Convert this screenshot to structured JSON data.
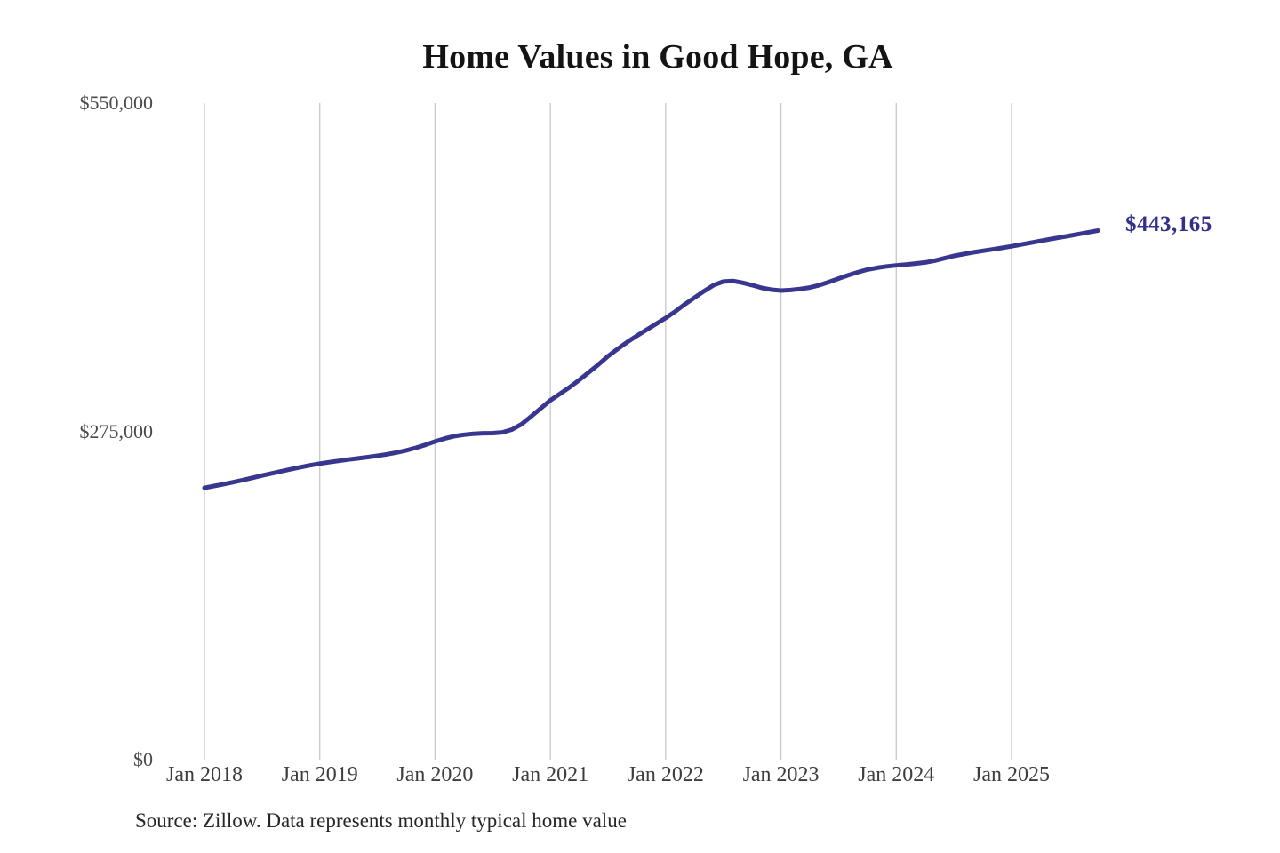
{
  "header": {
    "title": "Home Values in Good Hope, GA"
  },
  "footer": {
    "source_note": "Source: Zillow. Data represents monthly typical home value"
  },
  "colors": {
    "line": "#38368e",
    "end_label": "#32308a",
    "grid": "#c8c8c8",
    "title": "#141414",
    "y_axis_label": "#4a4a4a",
    "x_axis_label": "#3d3d3d",
    "source": "#262626",
    "background": "#ffffff"
  },
  "chart_data": {
    "type": "line",
    "title": "Home Values in Good Hope, GA",
    "unit": "USD",
    "frequency": "monthly",
    "x_start": "Jan 2018",
    "x_end": "Oct 2025",
    "grid": "vertical-only",
    "legend": "none",
    "ylim": [
      0,
      550000
    ],
    "x_tick_labels": [
      "Jan 2018",
      "Jan 2019",
      "Jan 2020",
      "Jan 2021",
      "Jan 2022",
      "Jan 2023",
      "Jan 2024",
      "Jan 2025"
    ],
    "y_ticks": [
      {
        "label": "$0",
        "value": 0
      },
      {
        "label": "$275,000",
        "value": 275000
      },
      {
        "label": "$550,000",
        "value": 550000
      }
    ],
    "series": [
      {
        "name": "Monthly typical home value",
        "end_label": "$443,165",
        "end_value": 443165,
        "values": [
          227700,
          229200,
          230800,
          232400,
          234200,
          236100,
          238000,
          239800,
          241600,
          243300,
          245000,
          246600,
          248000,
          249200,
          250300,
          251400,
          252400,
          253400,
          254500,
          255800,
          257300,
          259100,
          261200,
          263700,
          266500,
          269000,
          271000,
          272200,
          273000,
          273400,
          273500,
          274200,
          276500,
          281000,
          287500,
          294300,
          301000,
          306500,
          312000,
          318000,
          324500,
          331000,
          338000,
          344000,
          349800,
          355000,
          360000,
          365000,
          370000,
          375500,
          381500,
          387000,
          392500,
          397500,
          400500,
          401000,
          399500,
          397500,
          395200,
          393700,
          393000,
          393400,
          394300,
          395500,
          397500,
          400100,
          403000,
          405800,
          408300,
          410500,
          412000,
          413200,
          414000,
          414800,
          415600,
          416500,
          418000,
          420000,
          422000,
          423500,
          425000,
          426200,
          427400,
          428700,
          430000,
          431500,
          433000,
          434500,
          436000,
          437400,
          438800,
          440300,
          441800,
          443165
        ]
      }
    ]
  }
}
